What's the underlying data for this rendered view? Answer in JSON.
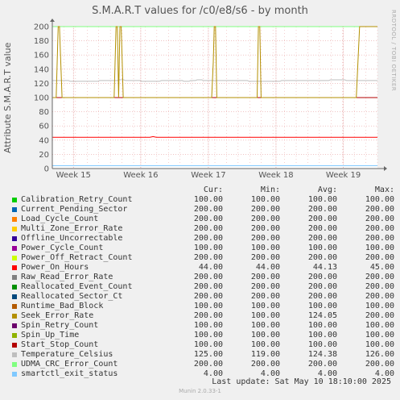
{
  "chart_data": {
    "type": "line",
    "title": "S.M.A.R.T values for /c0/e8/s6 - by month",
    "ylabel": "Attribute S.M.A.R.T value",
    "xlabel": "",
    "ylim": [
      0,
      200
    ],
    "yticks": [
      0,
      20,
      40,
      60,
      80,
      100,
      120,
      140,
      160,
      180,
      200
    ],
    "x_tick_labels": [
      "Week 15",
      "Week 16",
      "Week 17",
      "Week 18",
      "Week 19"
    ],
    "grid": true,
    "series": [
      {
        "name": "Calibration_Retry_Count",
        "color": "#00cc00",
        "cur": "100.00",
        "min": "100.00",
        "avg": "100.00",
        "max": "100.00"
      },
      {
        "name": "Current_Pending_Sector",
        "color": "#0066b3",
        "cur": "200.00",
        "min": "200.00",
        "avg": "200.00",
        "max": "200.00"
      },
      {
        "name": "Load_Cycle_Count",
        "color": "#ff8000",
        "cur": "200.00",
        "min": "200.00",
        "avg": "200.00",
        "max": "200.00"
      },
      {
        "name": "Multi_Zone_Error_Rate",
        "color": "#ffcc00",
        "cur": "200.00",
        "min": "200.00",
        "avg": "200.00",
        "max": "200.00"
      },
      {
        "name": "Offline_Uncorrectable",
        "color": "#330099",
        "cur": "200.00",
        "min": "200.00",
        "avg": "200.00",
        "max": "200.00"
      },
      {
        "name": "Power_Cycle_Count",
        "color": "#990099",
        "cur": "100.00",
        "min": "100.00",
        "avg": "100.00",
        "max": "100.00"
      },
      {
        "name": "Power_Off_Retract_Count",
        "color": "#ccff00",
        "cur": "200.00",
        "min": "200.00",
        "avg": "200.00",
        "max": "200.00"
      },
      {
        "name": "Power_On_Hours",
        "color": "#ff0000",
        "cur": "44.00",
        "min": "44.00",
        "avg": "44.13",
        "max": "45.00"
      },
      {
        "name": "Raw_Read_Error_Rate",
        "color": "#808080",
        "cur": "200.00",
        "min": "200.00",
        "avg": "200.00",
        "max": "200.00"
      },
      {
        "name": "Reallocated_Event_Count",
        "color": "#008f00",
        "cur": "200.00",
        "min": "200.00",
        "avg": "200.00",
        "max": "200.00"
      },
      {
        "name": "Reallocated_Sector_Ct",
        "color": "#00487d",
        "cur": "200.00",
        "min": "200.00",
        "avg": "200.00",
        "max": "200.00"
      },
      {
        "name": "Runtime_Bad_Block",
        "color": "#b35a00",
        "cur": "100.00",
        "min": "100.00",
        "avg": "100.00",
        "max": "100.00"
      },
      {
        "name": "Seek_Error_Rate",
        "color": "#b38f00",
        "cur": "200.00",
        "min": "100.00",
        "avg": "124.05",
        "max": "200.00"
      },
      {
        "name": "Spin_Retry_Count",
        "color": "#6b006b",
        "cur": "100.00",
        "min": "100.00",
        "avg": "100.00",
        "max": "100.00"
      },
      {
        "name": "Spin_Up_Time",
        "color": "#8fb300",
        "cur": "100.00",
        "min": "100.00",
        "avg": "100.00",
        "max": "100.00"
      },
      {
        "name": "Start_Stop_Count",
        "color": "#b30000",
        "cur": "100.00",
        "min": "100.00",
        "avg": "100.00",
        "max": "100.00"
      },
      {
        "name": "Temperature_Celsius",
        "color": "#bebebe",
        "cur": "125.00",
        "min": "119.00",
        "avg": "124.38",
        "max": "126.00"
      },
      {
        "name": "UDMA_CRC_Error_Count",
        "color": "#80ff80",
        "cur": "200.00",
        "min": "200.00",
        "avg": "200.00",
        "max": "200.00"
      },
      {
        "name": "smartctl_exit_status",
        "color": "#80c9ff",
        "cur": "4.00",
        "min": "4.00",
        "avg": "4.00",
        "max": "4.00"
      }
    ]
  },
  "legend_headers": {
    "cur": "Cur:",
    "min": "Min:",
    "avg": "Avg:",
    "max": "Max:"
  },
  "footer": {
    "last_update": "Last update:  Sat May 10 18:10:00 2025"
  },
  "side_label": "RRDTOOL / TOBI OETIKER",
  "munin_version": "Munin 2.0.33-1"
}
